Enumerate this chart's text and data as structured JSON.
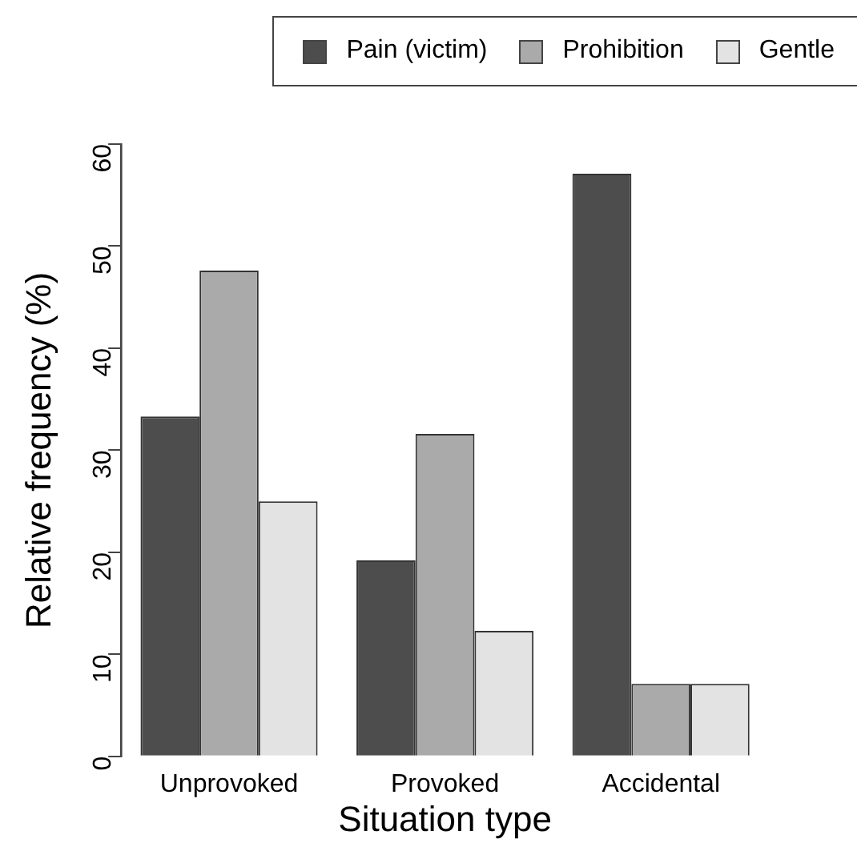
{
  "chart_data": {
    "type": "bar",
    "xlabel": "Situation type",
    "ylabel": "Relative frequency (%)",
    "categories": [
      "Unprovoked",
      "Provoked",
      "Accidental"
    ],
    "series": [
      {
        "name": "Pain (victim)",
        "color": "#4d4d4d",
        "values": [
          33.3,
          19.2,
          57.1
        ]
      },
      {
        "name": "Prohibition",
        "color": "#aaaaaa",
        "values": [
          47.6,
          31.6,
          7.1
        ]
      },
      {
        "name": "Gentle",
        "color": "#e3e3e3",
        "values": [
          25.0,
          12.3,
          7.1
        ]
      }
    ],
    "ylim": [
      0,
      60
    ],
    "yticks": [
      0,
      10,
      20,
      30,
      40,
      50,
      60
    ],
    "grid": false,
    "legend": "top right"
  }
}
